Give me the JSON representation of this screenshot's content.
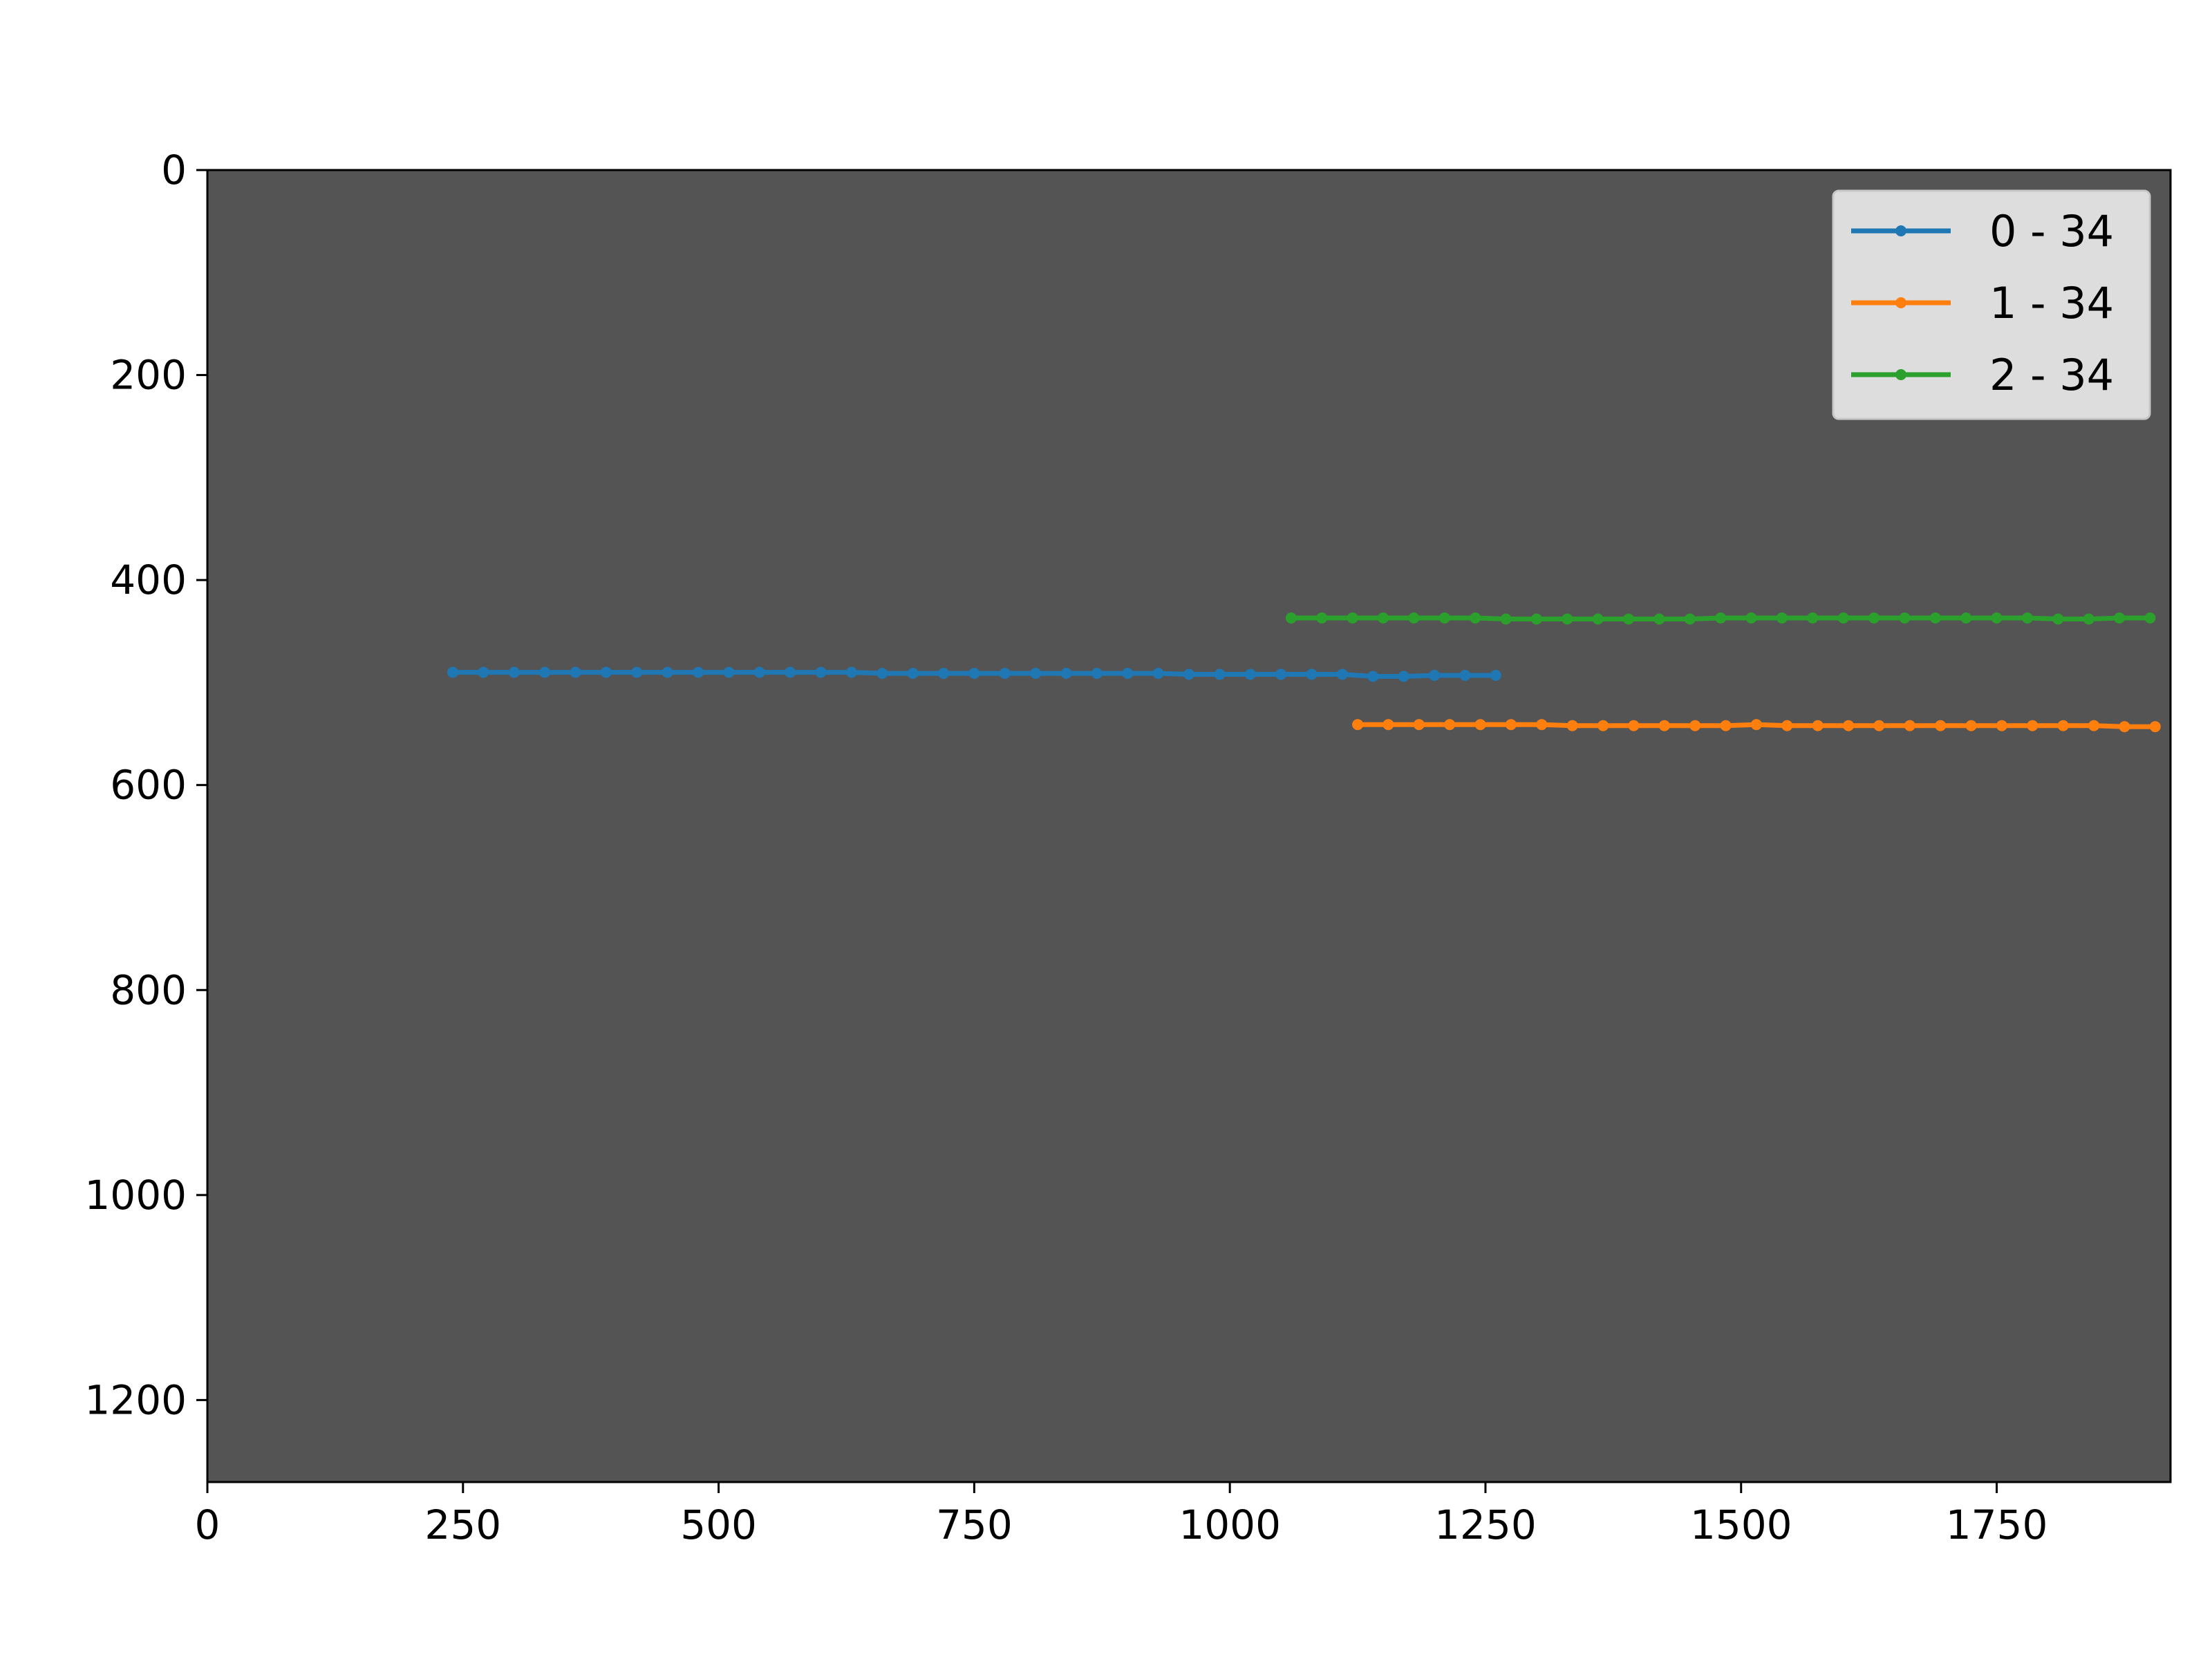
{
  "chart_data": {
    "type": "line",
    "title": "",
    "xlabel": "",
    "ylabel": "",
    "xlim": [
      0,
      1920
    ],
    "ylim": [
      1280,
      0
    ],
    "y_inverted": true,
    "grid": false,
    "plot_background": "#545454",
    "xticks": [
      0,
      250,
      500,
      750,
      1000,
      1250,
      1500,
      1750
    ],
    "xtick_labels": [
      "0",
      "250",
      "500",
      "750",
      "1000",
      "1250",
      "1500",
      "1750"
    ],
    "yticks": [
      0,
      200,
      400,
      600,
      800,
      1000,
      1200
    ],
    "ytick_labels": [
      "0",
      "200",
      "400",
      "600",
      "800",
      "1000",
      "1200"
    ],
    "legend": {
      "placement": "top-right"
    },
    "series": [
      {
        "name": "0 - 34",
        "color": "#1f77b4",
        "x": [
          240,
          270,
          300,
          330,
          360,
          390,
          420,
          450,
          480,
          510,
          540,
          570,
          600,
          630,
          660,
          690,
          720,
          750,
          780,
          810,
          840,
          870,
          900,
          930,
          960,
          990,
          1020,
          1050,
          1080,
          1110,
          1140,
          1170,
          1200,
          1230,
          1260
        ],
        "y": [
          490,
          490,
          490,
          490,
          490,
          490,
          490,
          490,
          490,
          490,
          490,
          490,
          490,
          490,
          491,
          491,
          491,
          491,
          491,
          491,
          491,
          491,
          491,
          491,
          492,
          492,
          492,
          492,
          492,
          492,
          494,
          494,
          493,
          493,
          493
        ]
      },
      {
        "name": "1 - 34",
        "color": "#ff7f0e",
        "x": [
          1125,
          1155,
          1185,
          1215,
          1245,
          1275,
          1305,
          1335,
          1365,
          1395,
          1425,
          1455,
          1485,
          1515,
          1545,
          1575,
          1605,
          1635,
          1665,
          1695,
          1725,
          1755,
          1785,
          1815,
          1845,
          1875,
          1905
        ],
        "y": [
          541,
          541,
          541,
          541,
          541,
          541,
          541,
          542,
          542,
          542,
          542,
          542,
          542,
          541,
          542,
          542,
          542,
          542,
          542,
          542,
          542,
          542,
          542,
          542,
          542,
          543,
          543
        ]
      },
      {
        "name": "2 - 34",
        "color": "#2ca02c",
        "x": [
          1060,
          1090,
          1120,
          1150,
          1180,
          1210,
          1240,
          1270,
          1300,
          1330,
          1360,
          1390,
          1420,
          1450,
          1480,
          1510,
          1540,
          1570,
          1600,
          1630,
          1660,
          1690,
          1720,
          1750,
          1780,
          1810,
          1840,
          1870,
          1900
        ],
        "y": [
          437,
          437,
          437,
          437,
          437,
          437,
          437,
          438,
          438,
          438,
          438,
          438,
          438,
          438,
          437,
          437,
          437,
          437,
          437,
          437,
          437,
          437,
          437,
          437,
          437,
          438,
          438,
          437,
          437
        ]
      }
    ]
  }
}
